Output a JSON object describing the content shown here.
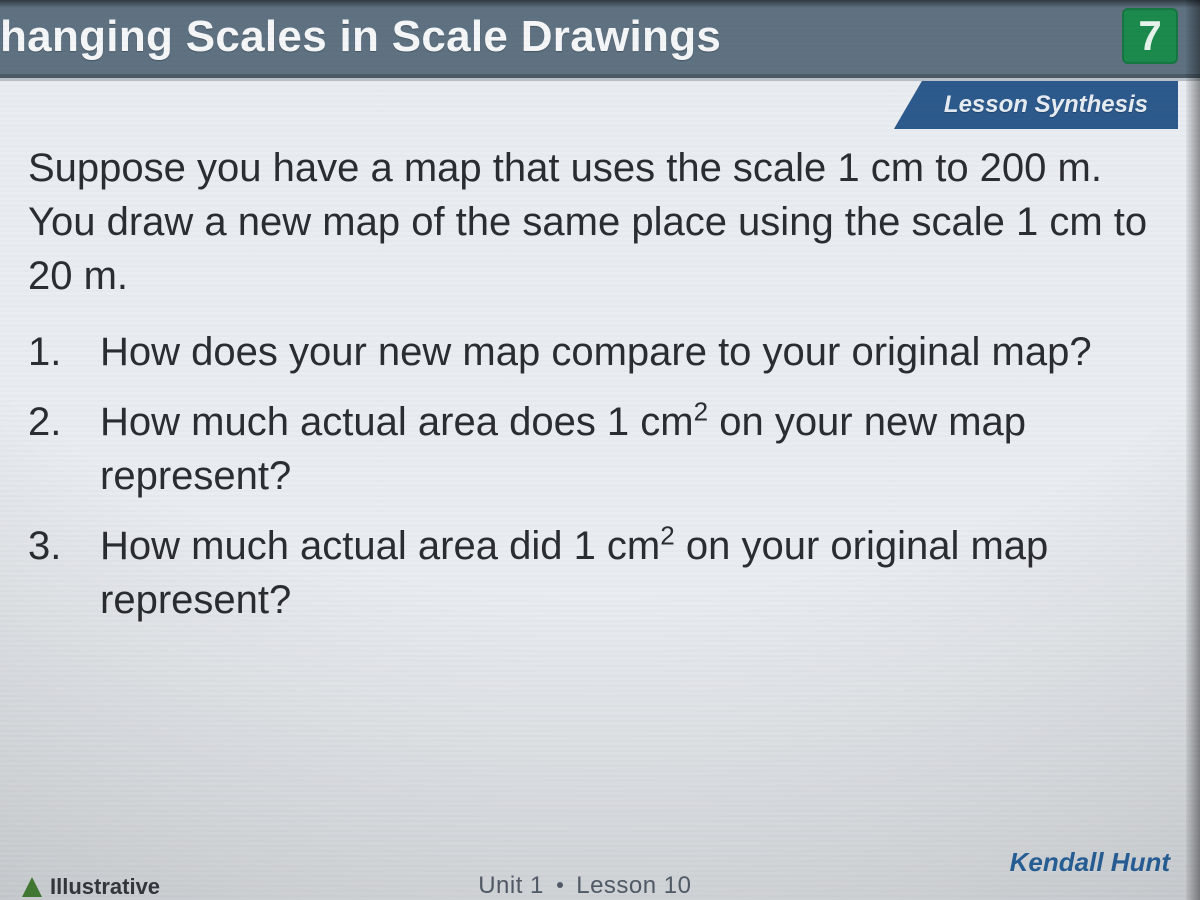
{
  "header": {
    "title": "hanging Scales in Scale Drawings",
    "grade_badge": "7",
    "background_color": "#5f7282",
    "title_color": "#f4f6f8",
    "title_fontsize": 44,
    "badge_bg": "#1b8a4c",
    "badge_color": "#e6f3eb"
  },
  "tab": {
    "label": "Lesson Synthesis",
    "bg": "#2d5a8c",
    "color": "#e6ecf3",
    "fontsize": 24
  },
  "intro_text": "Suppose you have a map that uses the scale 1 cm to 200 m. You draw a new map of the same place using the scale 1 cm to 20 m.",
  "questions": [
    "How does your new map compare to your original map?",
    "How much actual area does 1 cm² on your new map represent?",
    "How much actual area did 1 cm² on your original map represent?"
  ],
  "body_color": "#2a2d31",
  "body_fontsize": 40,
  "slide_bg": "#e9edf1",
  "footer": {
    "left_label": "Illustrative",
    "unit_text": "Unit 1",
    "lesson_text": "Lesson 10",
    "publisher": "Kendall Hunt",
    "unit_color": "#5a6572",
    "publisher_color": "#2b6aa8"
  }
}
